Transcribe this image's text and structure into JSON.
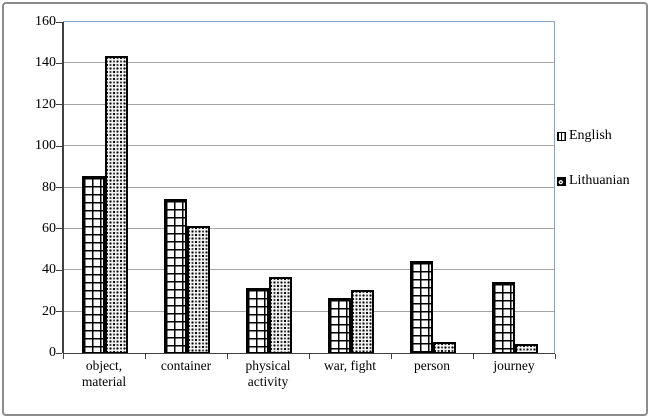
{
  "chart_data": {
    "type": "bar",
    "title": "",
    "xlabel": "",
    "ylabel": "",
    "categories": [
      "object,\nmaterial",
      "container",
      "physical\nactivity",
      "war, fight",
      "person",
      "journey"
    ],
    "series": [
      {
        "name": "English",
        "pattern": "grid",
        "values": [
          86,
          75,
          32,
          27,
          45,
          35
        ]
      },
      {
        "name": "Lithuanian",
        "pattern": "spheres",
        "values": [
          144,
          62,
          37,
          31,
          6,
          5
        ]
      }
    ],
    "ylim": [
      0,
      160
    ],
    "yticks": [
      0,
      20,
      40,
      60,
      80,
      100,
      120,
      140,
      160
    ],
    "grid": true,
    "legend_position": "right"
  },
  "colors": {
    "plot_border": "#87a2c7",
    "gridline": "#a6a6a6",
    "axis": "#404040",
    "bar_outline": "#000000",
    "figure_border": "#8c8c8c",
    "english_pattern": "black grid on white",
    "lithuanian_pattern": "white spheres on black"
  }
}
